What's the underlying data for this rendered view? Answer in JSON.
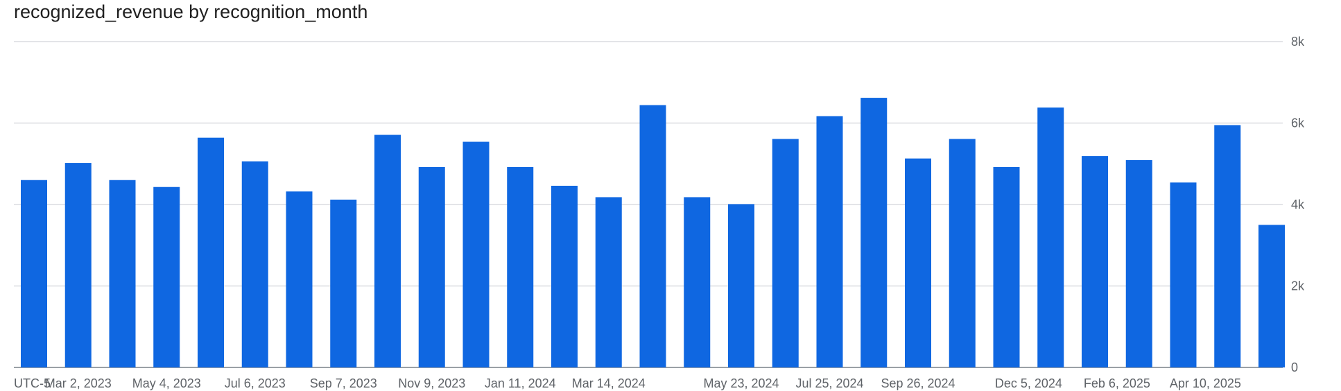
{
  "chart_data": {
    "type": "bar",
    "title": "recognized_revenue by recognition_month",
    "xlabel": "",
    "ylabel": "",
    "ylim": [
      0,
      8000
    ],
    "grid": true,
    "y_axis_side": "right",
    "y_ticks": [
      {
        "value": 0,
        "label": "0"
      },
      {
        "value": 2000,
        "label": "2k"
      },
      {
        "value": 4000,
        "label": "4k"
      },
      {
        "value": 6000,
        "label": "6k"
      },
      {
        "value": 8000,
        "label": "8k"
      }
    ],
    "x_ticks": [
      {
        "index": 0,
        "label": "UTC-5"
      },
      {
        "index": 1,
        "label": "Mar 2, 2023"
      },
      {
        "index": 3,
        "label": "May 4, 2023"
      },
      {
        "index": 5,
        "label": "Jul 6, 2023"
      },
      {
        "index": 7,
        "label": "Sep 7, 2023"
      },
      {
        "index": 9,
        "label": "Nov 9, 2023"
      },
      {
        "index": 11,
        "label": "Jan 11, 2024"
      },
      {
        "index": 13,
        "label": "Mar 14, 2024"
      },
      {
        "index": 16,
        "label": "May 23, 2024"
      },
      {
        "index": 18,
        "label": "Jul 25, 2024"
      },
      {
        "index": 20,
        "label": "Sep 26, 2024"
      },
      {
        "index": 22.5,
        "label": "Dec 5, 2024"
      },
      {
        "index": 24.5,
        "label": "Feb 6, 2025"
      },
      {
        "index": 26.5,
        "label": "Apr 10, 2025"
      }
    ],
    "values": [
      4600,
      5020,
      4600,
      4430,
      5640,
      5060,
      4320,
      4120,
      5710,
      4920,
      5540,
      4920,
      4460,
      4180,
      6440,
      4180,
      4010,
      5610,
      6170,
      6620,
      5130,
      5610,
      4920,
      6380,
      5190,
      5090,
      4540,
      5950,
      3500
    ],
    "color": "#0F67E1",
    "grid_color": "#DADCE0",
    "axis_color": "#9AA0A6"
  }
}
